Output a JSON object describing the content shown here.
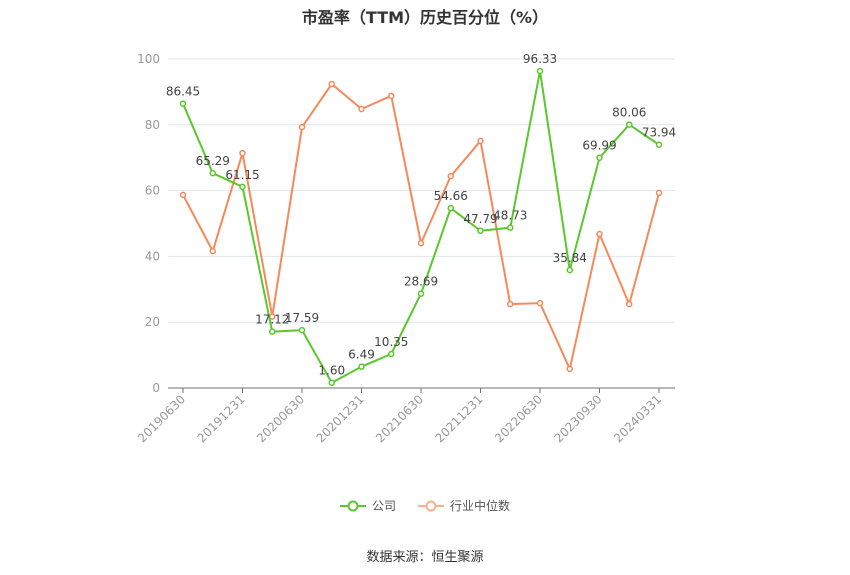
{
  "chart_data": {
    "type": "line",
    "title": "市盈率（TTM）历史百分位（%）",
    "categories": [
      "20190630",
      "",
      "20191231",
      "",
      "20200630",
      "",
      "20201231",
      "",
      "20210630",
      "",
      "20211231",
      "",
      "20220630",
      "",
      "20230930",
      "",
      "20240331"
    ],
    "ylim": [
      0,
      100
    ],
    "yticks": [
      0,
      20,
      40,
      60,
      80,
      100
    ],
    "grid": true,
    "legend_position": "bottom",
    "series": [
      {
        "name": "公司",
        "color": "#5ac82c",
        "labels": true,
        "values": [
          86.45,
          65.29,
          61.15,
          17.12,
          17.59,
          1.6,
          6.49,
          10.35,
          28.69,
          54.66,
          47.79,
          48.73,
          96.33,
          35.84,
          69.99,
          80.06,
          73.94
        ]
      },
      {
        "name": "行业中位数",
        "color": "#f5895a",
        "labels": false,
        "values": [
          58.7,
          41.6,
          71.4,
          21.7,
          79.3,
          92.4,
          84.8,
          88.8,
          44.0,
          64.4,
          75.1,
          25.5,
          25.8,
          5.8,
          46.8,
          25.5,
          59.3
        ]
      }
    ]
  },
  "legend": {
    "company": "公司",
    "industry": "行业中位数"
  },
  "source": "数据来源：恒生聚源"
}
